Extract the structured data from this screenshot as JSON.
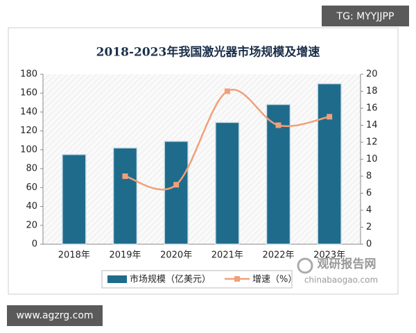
{
  "chart_data": {
    "type": "bar-line",
    "title": "2018-2023年我国激光器市场规模及增速",
    "categories": [
      "2018年",
      "2019年",
      "2020年",
      "2021年",
      "2022年",
      "2023年"
    ],
    "series": [
      {
        "name": "市场规模（亿美元）",
        "color": "#1f6b8c",
        "type": "bar",
        "values": [
          95,
          102,
          109,
          129,
          148,
          170
        ]
      },
      {
        "name": "增速（%）",
        "color": "#f0a07a",
        "type": "line",
        "axis": "y2",
        "values": [
          null,
          8,
          7,
          18,
          14,
          15
        ]
      }
    ],
    "ylim": [
      0,
      180
    ],
    "yticks": [
      0,
      20,
      40,
      60,
      80,
      100,
      120,
      140,
      160,
      180
    ],
    "y2lim": [
      0,
      20
    ],
    "y2ticks": [
      0,
      2,
      4,
      6,
      8,
      10,
      12,
      14,
      16,
      18,
      20
    ],
    "grid": false,
    "legend": "bottom"
  },
  "watermarks": {
    "top_right": "TG: MYYJJPP",
    "bottom_left": "www.agzrg.com",
    "logo": "观研报告网",
    "logo_url": "chinabaogao.com"
  }
}
